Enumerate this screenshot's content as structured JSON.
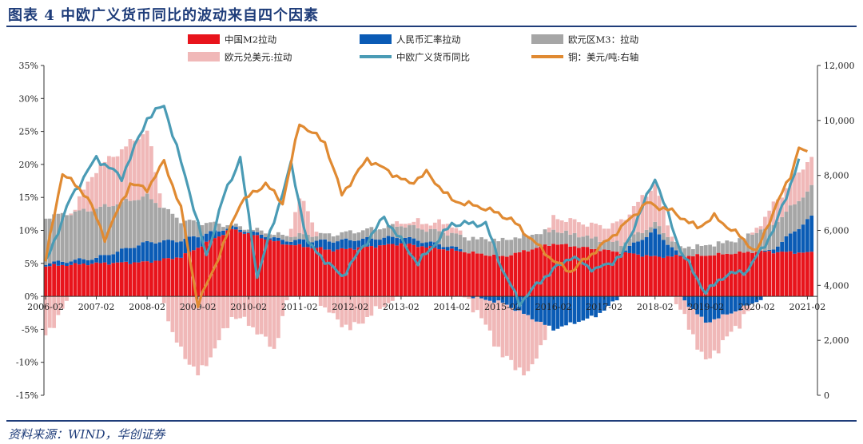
{
  "header": {
    "title": "图表 4   中欧广义货币同比的波动来自四个因素"
  },
  "footer": {
    "source": "资料来源：WIND，华创证券"
  },
  "colors": {
    "china_m2": "#e8141c",
    "rmb_fx": "#0a5bb5",
    "euro_m3": "#a6a6a6",
    "euro_usd": "#f0b8b8",
    "money_yoy": "#4a9bb5",
    "copper": "#e08a32"
  },
  "chart_data": {
    "type": "bar+line",
    "title": "中欧广义货币同比的波动来自四个因素",
    "x_tick_labels": [
      "2006-02",
      "2007-02",
      "2008-02",
      "2009-02",
      "2010-02",
      "2011-02",
      "2012-02",
      "2013-02",
      "2014-02",
      "2015-02",
      "2016-02",
      "2017-02",
      "2018-02",
      "2019-02",
      "2020-02",
      "2021-02"
    ],
    "y_left_ticks": [
      "35%",
      "30%",
      "25%",
      "20%",
      "15%",
      "10%",
      "5%",
      "0%",
      "-5%",
      "-10%",
      "-15%"
    ],
    "y_right_ticks": [
      "12,000",
      "10,000",
      "8,000",
      "6,000",
      "4,000",
      "2,000",
      "0"
    ],
    "y_left_range": [
      -15,
      35
    ],
    "y_right_range": [
      0,
      12000
    ],
    "start": "2006-02",
    "step_months": 1,
    "legend": [
      {
        "key": "china_m2",
        "label": "中国M2拉动",
        "kind": "bar"
      },
      {
        "key": "rmb_fx",
        "label": "人民币汇率拉动",
        "kind": "bar"
      },
      {
        "key": "euro_m3",
        "label": "欧元区M3：拉动",
        "kind": "bar"
      },
      {
        "key": "euro_usd",
        "label": "欧元兑美元:拉动",
        "kind": "bar"
      },
      {
        "key": "money_yoy",
        "label": "中欧广义货币同比",
        "kind": "line"
      },
      {
        "key": "copper",
        "label": "铜：美元/吨:右轴",
        "kind": "line"
      }
    ],
    "series": {
      "china_m2": {
        "anchors": [
          [
            0,
            4.6
          ],
          [
            12,
            5
          ],
          [
            24,
            5.2
          ],
          [
            32,
            6
          ],
          [
            44,
            10.2
          ],
          [
            56,
            8
          ],
          [
            68,
            7
          ],
          [
            84,
            8
          ],
          [
            96,
            7
          ],
          [
            108,
            6
          ],
          [
            120,
            8
          ],
          [
            132,
            7
          ],
          [
            144,
            6
          ],
          [
            156,
            6.2
          ],
          [
            168,
            6.8
          ],
          [
            182,
            6.6
          ]
        ]
      },
      "rmb_fx": {
        "anchors": [
          [
            0,
            0.4
          ],
          [
            12,
            0.8
          ],
          [
            24,
            3
          ],
          [
            32,
            2.5
          ],
          [
            44,
            0.3
          ],
          [
            56,
            0.5
          ],
          [
            68,
            1.4
          ],
          [
            84,
            1
          ],
          [
            96,
            0.5
          ],
          [
            108,
            -1
          ],
          [
            120,
            -5
          ],
          [
            130,
            -3
          ],
          [
            144,
            4
          ],
          [
            156,
            -4
          ],
          [
            164,
            -2
          ],
          [
            172,
            0.5
          ],
          [
            182,
            6
          ]
        ]
      },
      "euro_m3": {
        "anchors": [
          [
            0,
            7
          ],
          [
            12,
            7.5
          ],
          [
            24,
            7
          ],
          [
            32,
            3
          ],
          [
            44,
            0.3
          ],
          [
            56,
            0.7
          ],
          [
            68,
            1
          ],
          [
            84,
            1.8
          ],
          [
            96,
            2
          ],
          [
            108,
            2.5
          ],
          [
            120,
            2
          ],
          [
            132,
            1.5
          ],
          [
            144,
            1
          ],
          [
            156,
            1.5
          ],
          [
            164,
            2
          ],
          [
            170,
            3.5
          ],
          [
            182,
            4.5
          ]
        ]
      },
      "euro_usd": {
        "anchors": [
          [
            0,
            -6
          ],
          [
            12,
            6
          ],
          [
            24,
            10
          ],
          [
            30,
            -6
          ],
          [
            36,
            -12
          ],
          [
            40,
            -8
          ],
          [
            44,
            -3
          ],
          [
            48,
            -4
          ],
          [
            54,
            -8
          ],
          [
            60,
            6
          ],
          [
            66,
            -2
          ],
          [
            72,
            -5
          ],
          [
            84,
            0.5
          ],
          [
            96,
            1.5
          ],
          [
            102,
            -2
          ],
          [
            108,
            -8
          ],
          [
            114,
            -9
          ],
          [
            120,
            2
          ],
          [
            132,
            2
          ],
          [
            144,
            6
          ],
          [
            150,
            -2
          ],
          [
            156,
            -6
          ],
          [
            164,
            -2
          ],
          [
            172,
            3
          ],
          [
            182,
            5
          ]
        ]
      },
      "money_yoy": {
        "anchors": [
          [
            0,
            5
          ],
          [
            6,
            15
          ],
          [
            12,
            21
          ],
          [
            18,
            18
          ],
          [
            24,
            27
          ],
          [
            28,
            29
          ],
          [
            34,
            16
          ],
          [
            38,
            6
          ],
          [
            42,
            15
          ],
          [
            46,
            21
          ],
          [
            50,
            3
          ],
          [
            58,
            20
          ],
          [
            62,
            8
          ],
          [
            70,
            3
          ],
          [
            80,
            12
          ],
          [
            88,
            5
          ],
          [
            96,
            11
          ],
          [
            104,
            11
          ],
          [
            108,
            4
          ],
          [
            112,
            -1
          ],
          [
            118,
            3
          ],
          [
            124,
            6
          ],
          [
            130,
            4
          ],
          [
            136,
            6
          ],
          [
            144,
            18
          ],
          [
            150,
            7
          ],
          [
            156,
            0.5
          ],
          [
            160,
            3
          ],
          [
            166,
            4
          ],
          [
            172,
            10
          ],
          [
            178,
            20.5
          ]
        ]
      },
      "copper": {
        "anchors": [
          [
            0,
            4900
          ],
          [
            4,
            8100
          ],
          [
            10,
            7200
          ],
          [
            14,
            5700
          ],
          [
            20,
            7700
          ],
          [
            24,
            7500
          ],
          [
            28,
            8500
          ],
          [
            32,
            6800
          ],
          [
            36,
            3300
          ],
          [
            40,
            4700
          ],
          [
            46,
            7000
          ],
          [
            52,
            7700
          ],
          [
            56,
            7000
          ],
          [
            60,
            9900
          ],
          [
            66,
            9200
          ],
          [
            70,
            7300
          ],
          [
            76,
            8600
          ],
          [
            86,
            7700
          ],
          [
            90,
            8100
          ],
          [
            96,
            7100
          ],
          [
            104,
            6800
          ],
          [
            110,
            6400
          ],
          [
            116,
            5500
          ],
          [
            120,
            4900
          ],
          [
            124,
            4500
          ],
          [
            128,
            5000
          ],
          [
            134,
            5800
          ],
          [
            142,
            7000
          ],
          [
            148,
            6700
          ],
          [
            154,
            6100
          ],
          [
            158,
            6500
          ],
          [
            164,
            5800
          ],
          [
            168,
            5200
          ],
          [
            172,
            6700
          ],
          [
            176,
            8000
          ],
          [
            178,
            9000
          ],
          [
            180,
            8800
          ]
        ]
      }
    }
  }
}
